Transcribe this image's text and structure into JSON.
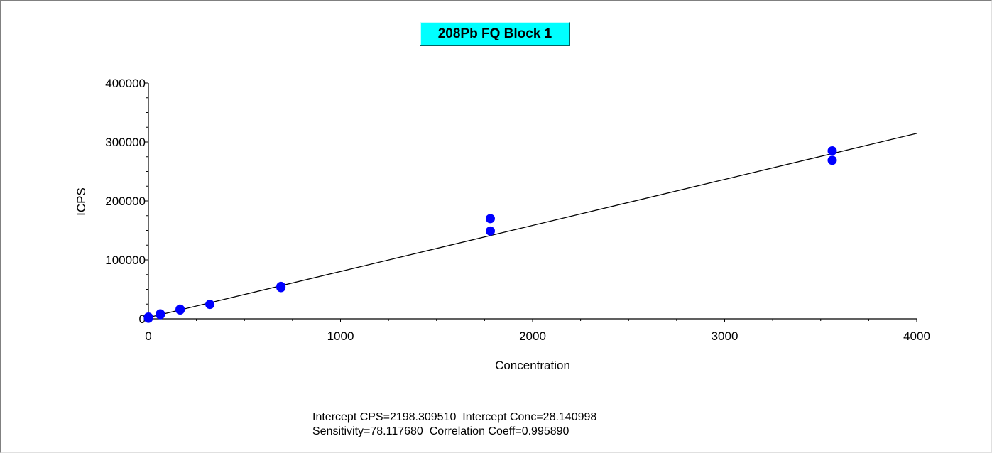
{
  "chart_data": {
    "type": "scatter",
    "title": "208Pb FQ Block 1",
    "xlabel": "Concentration",
    "ylabel": "ICPS",
    "xlim": [
      0,
      4000
    ],
    "ylim": [
      0,
      400000
    ],
    "x_ticks": [
      0,
      1000,
      2000,
      3000,
      4000
    ],
    "x_tick_labels": [
      "0",
      "1000",
      "2000",
      "3000",
      "4000"
    ],
    "y_ticks": [
      0,
      100000,
      200000,
      300000,
      400000
    ],
    "y_tick_labels": [
      "0",
      "100000",
      "200000",
      "300000",
      "400000"
    ],
    "grid": false,
    "series": [
      {
        "marker_color": "#0000ff",
        "points": [
          {
            "x": 0,
            "y": 1000
          },
          {
            "x": 0,
            "y": 3000
          },
          {
            "x": 62,
            "y": 7000
          },
          {
            "x": 62,
            "y": 8500
          },
          {
            "x": 165,
            "y": 15000
          },
          {
            "x": 165,
            "y": 16500
          },
          {
            "x": 320,
            "y": 24500
          },
          {
            "x": 690,
            "y": 53000
          },
          {
            "x": 690,
            "y": 55000
          },
          {
            "x": 1780,
            "y": 149000
          },
          {
            "x": 1780,
            "y": 170000
          },
          {
            "x": 3560,
            "y": 269000
          },
          {
            "x": 3560,
            "y": 285000
          }
        ]
      }
    ],
    "fit_line": {
      "intercept": 2198.30951,
      "slope": 78.11768,
      "x_range": [
        0,
        4000
      ],
      "color": "#000000"
    },
    "annotations": {
      "line1": "Intercept CPS=2198.309510  Intercept Conc=28.140998",
      "line2": "Sensitivity=78.117680  Correlation Coeff=0.995890"
    }
  }
}
